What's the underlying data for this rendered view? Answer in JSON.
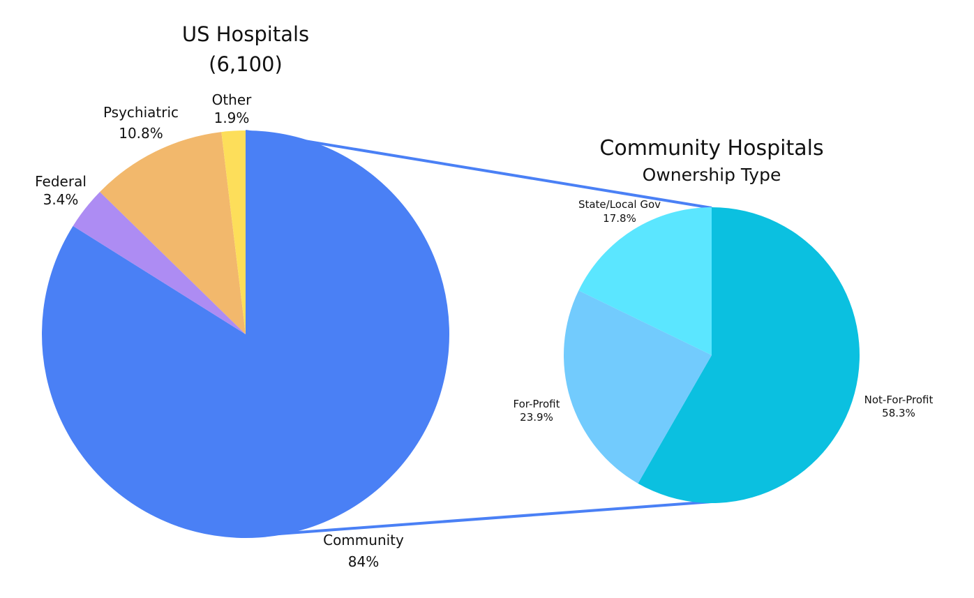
{
  "chart_data": [
    {
      "type": "pie",
      "title": "US Hospitals",
      "subtitle": "(6,100)",
      "slices": [
        {
          "label": "Community",
          "value": 84,
          "value_label": "84%",
          "color": "#4A80F5"
        },
        {
          "label": "Federal",
          "value": 3.4,
          "value_label": "3.4%",
          "color": "#AD8CF3"
        },
        {
          "label": "Psychiatric",
          "value": 10.8,
          "value_label": "10.8%",
          "color": "#F2B86C"
        },
        {
          "label": "Other",
          "value": 1.9,
          "value_label": "1.9%",
          "color": "#FDDE5A"
        }
      ]
    },
    {
      "type": "pie",
      "title": "Community Hospitals",
      "subtitle": "Ownership Type",
      "slices": [
        {
          "label": "Not-For-Profit",
          "value": 58.3,
          "value_label": "58.3%",
          "color": "#0BC0E0"
        },
        {
          "label": "For-Profit",
          "value": 23.9,
          "value_label": "23.9%",
          "color": "#72CBFD"
        },
        {
          "label": "State/Local Gov",
          "value": 17.8,
          "value_label": "17.8%",
          "color": "#5BE6FF"
        }
      ]
    }
  ],
  "connector_color": "#4A80F5"
}
